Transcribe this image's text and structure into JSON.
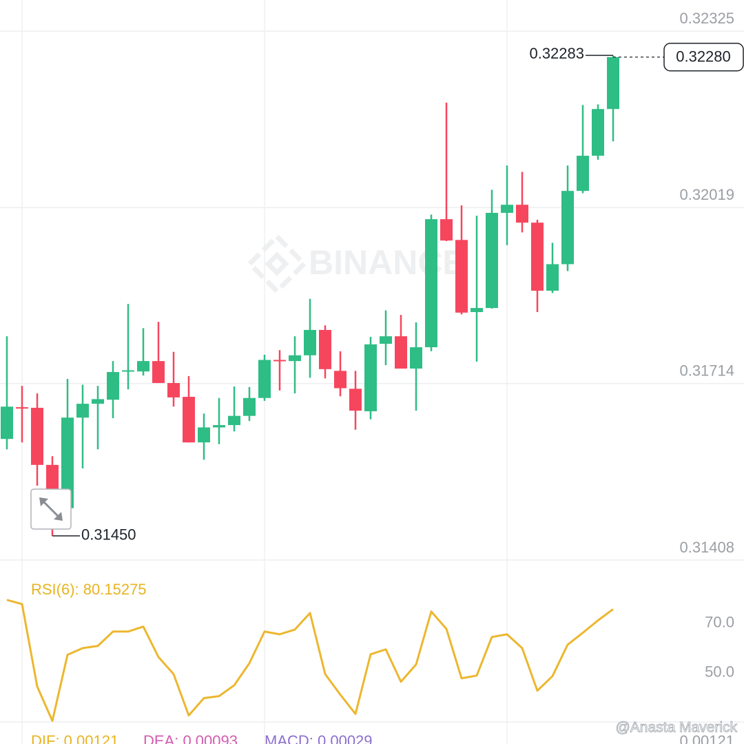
{
  "chart_data": [
    {
      "type": "candlestick",
      "open": [
        0.31618,
        0.31673,
        0.31672,
        0.31573,
        0.31498,
        0.31655,
        0.31679,
        0.31686,
        0.31735,
        0.31735,
        0.31753,
        0.31715,
        0.31691,
        0.31612,
        0.31638,
        0.31642,
        0.31658,
        0.31689,
        0.31755,
        0.31753,
        0.31763,
        0.31807,
        0.31736,
        0.31705,
        0.31666,
        0.31783,
        0.31796,
        0.3174,
        0.31777,
        0.31999,
        0.31963,
        0.31838,
        0.31845,
        0.3201,
        0.32024,
        0.31993,
        0.31875,
        0.31921,
        0.32048,
        0.32109,
        0.3219
      ],
      "high": [
        0.31796,
        0.3171,
        0.31697,
        0.31588,
        0.31722,
        0.31712,
        0.3171,
        0.31753,
        0.31852,
        0.3181,
        0.31821,
        0.31769,
        0.31727,
        0.31662,
        0.31689,
        0.31709,
        0.31708,
        0.31764,
        0.31772,
        0.31796,
        0.31861,
        0.31815,
        0.3177,
        0.31736,
        0.31795,
        0.31841,
        0.31833,
        0.3182,
        0.32007,
        0.32201,
        0.32023,
        0.32005,
        0.3205,
        0.32092,
        0.32081,
        0.31998,
        0.31958,
        0.32092,
        0.32197,
        0.32198,
        0.32283
      ],
      "low": [
        0.316,
        0.31612,
        0.31537,
        0.3145,
        0.31495,
        0.31567,
        0.316,
        0.31654,
        0.31704,
        0.31728,
        0.31715,
        0.31674,
        0.31612,
        0.31582,
        0.31609,
        0.31631,
        0.31649,
        0.31684,
        0.31702,
        0.31697,
        0.31724,
        0.31723,
        0.31692,
        0.31634,
        0.31652,
        0.31746,
        0.3174,
        0.31667,
        0.3177,
        0.31961,
        0.31834,
        0.31752,
        0.31844,
        0.31954,
        0.31976,
        0.31838,
        0.31871,
        0.31909,
        0.32044,
        0.32102,
        0.32134
      ],
      "close": [
        0.31674,
        0.31672,
        0.31573,
        0.31501,
        0.31655,
        0.31679,
        0.31687,
        0.31734,
        0.31737,
        0.31753,
        0.31715,
        0.3169,
        0.31612,
        0.31638,
        0.31642,
        0.31658,
        0.31689,
        0.31755,
        0.31753,
        0.31763,
        0.31807,
        0.31739,
        0.31706,
        0.31667,
        0.31782,
        0.31796,
        0.3174,
        0.31777,
        0.31999,
        0.31962,
        0.31837,
        0.31845,
        0.3201,
        0.32024,
        0.31993,
        0.31875,
        0.31921,
        0.32048,
        0.32109,
        0.3219,
        0.3228
      ],
      "up_color": "#2ebd85",
      "down_color": "#f6465d",
      "ylim": [
        0.31408,
        0.32379
      ],
      "yticks": [
        0.32325,
        0.32019,
        0.31714,
        0.31408
      ],
      "grid": true,
      "max_label": 0.32283,
      "min_label": {
        "value": 0.3145,
        "label": "0.31450"
      },
      "last_price": {
        "value": 0.3228,
        "label": "0.32280"
      },
      "watermark": "BINANCE"
    },
    {
      "type": "line",
      "title": "RSI(6): 80.15275",
      "color": "#ecb72f",
      "values": [
        83.9,
        82.2,
        48.9,
        35.0,
        61.7,
        64.4,
        65.3,
        71.1,
        71.1,
        73.1,
        60.8,
        53.9,
        37.2,
        44.2,
        45.0,
        49.4,
        58.3,
        71.1,
        70.0,
        71.9,
        78.6,
        53.9,
        45.6,
        37.8,
        61.9,
        63.9,
        50.8,
        57.8,
        79.2,
        72.2,
        52.2,
        53.3,
        68.9,
        70.0,
        64.4,
        47.2,
        53.1,
        65.8,
        70.6,
        75.6,
        80.15275
      ],
      "ylim": [
        34,
        100
      ],
      "yticks": [
        {
          "value": 70,
          "label": "70.0"
        },
        {
          "value": 50,
          "label": "50.0"
        }
      ]
    }
  ],
  "macd_panel": {
    "dif": "DIF: 0.00121",
    "dea": "DEA: 0.00093",
    "macd": "MACD: 0.00029",
    "axis_label": "0.00121"
  },
  "credit": "@Anasta Maverick"
}
